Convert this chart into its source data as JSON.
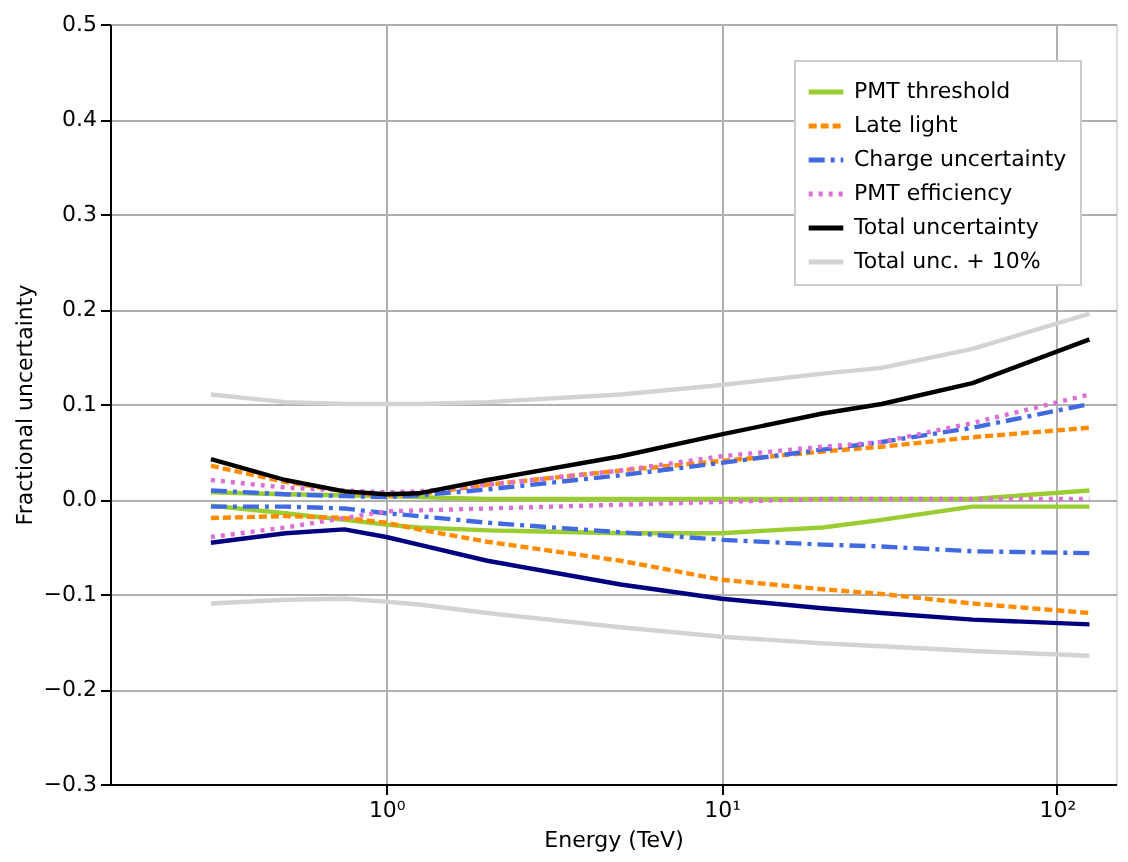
{
  "chart_data": {
    "type": "line",
    "xlabel": "Energy (TeV)",
    "ylabel": "Fractional uncertainty",
    "log": "x",
    "grid": true,
    "legend": "top right",
    "xlim": [
      0.15,
      150
    ],
    "xticks": [
      {
        "value": 1,
        "label": "10⁰"
      },
      {
        "value": 10,
        "label": "10¹"
      },
      {
        "value": 100,
        "label": "10²"
      }
    ],
    "ylim": [
      -0.3,
      0.5
    ],
    "yticks": [
      -0.3,
      -0.2,
      -0.1,
      {
        "value": 0,
        "label": "0.0"
      },
      0.1,
      0.2,
      0.3,
      0.4,
      0.5
    ],
    "x": [
      0.3,
      0.5,
      0.75,
      1,
      1.25,
      2,
      5,
      10,
      20,
      30,
      56,
      125
    ],
    "series": [
      {
        "name": "PMT threshold",
        "color": "#9acd32",
        "line_style": "solid",
        "values": [
          0.007,
          0.005,
          0.004,
          0.003,
          0.002,
          0.0,
          0.0,
          0.0,
          0.0,
          0.0,
          0.0,
          0.009
        ]
      },
      {
        "color": "#9acd32",
        "line_style": "solid",
        "values": [
          -0.007,
          -0.015,
          -0.022,
          -0.027,
          -0.03,
          -0.033,
          -0.036,
          -0.036,
          -0.03,
          -0.022,
          -0.008,
          -0.008
        ]
      },
      {
        "name": "Late light",
        "color": "#ff8c00",
        "line_style": "dashed",
        "values": [
          0.035,
          0.018,
          0.008,
          0.003,
          0.005,
          0.015,
          0.03,
          0.04,
          0.05,
          0.055,
          0.065,
          0.075
        ]
      },
      {
        "color": "#ff8c00",
        "line_style": "dashed",
        "values": [
          -0.02,
          -0.018,
          -0.02,
          -0.025,
          -0.032,
          -0.045,
          -0.065,
          -0.085,
          -0.095,
          -0.1,
          -0.11,
          -0.12
        ]
      },
      {
        "name": "Charge uncertainty",
        "color": "#4169e1",
        "line_style": "dashdot",
        "values": [
          0.009,
          0.005,
          0.003,
          0.002,
          0.004,
          0.01,
          0.025,
          0.038,
          0.052,
          0.06,
          0.075,
          0.1
        ]
      },
      {
        "color": "#4169e1",
        "line_style": "dashdot",
        "values": [
          -0.008,
          -0.008,
          -0.01,
          -0.015,
          -0.018,
          -0.025,
          -0.035,
          -0.043,
          -0.048,
          -0.05,
          -0.055,
          -0.057
        ]
      },
      {
        "name": "PMT efficiency",
        "color": "#da70d6",
        "line_style": "dotted",
        "values": [
          0.02,
          0.012,
          0.009,
          0.007,
          0.008,
          0.015,
          0.03,
          0.045,
          0.055,
          0.06,
          0.08,
          0.11
        ]
      },
      {
        "color": "#da70d6",
        "line_style": "dotted",
        "values": [
          -0.04,
          -0.03,
          -0.02,
          -0.013,
          -0.012,
          -0.01,
          -0.006,
          -0.003,
          0.0,
          0.0,
          0.0,
          0.0
        ]
      },
      {
        "name": "Total uncertainty",
        "color": "#000000",
        "line_style": "solid",
        "values": [
          0.042,
          0.02,
          0.008,
          0.005,
          0.006,
          0.02,
          0.045,
          0.068,
          0.09,
          0.1,
          0.122,
          0.168
        ]
      },
      {
        "color": "#000080",
        "line_style": "solid",
        "values": [
          -0.046,
          -0.036,
          -0.032,
          -0.04,
          -0.048,
          -0.065,
          -0.09,
          -0.105,
          -0.115,
          -0.12,
          -0.127,
          -0.132
        ]
      },
      {
        "name": "Total unc. + 10%",
        "color": "#d3d3d3",
        "line_style": "solid",
        "values": [
          0.11,
          0.102,
          0.1,
          0.1,
          0.1,
          0.102,
          0.11,
          0.12,
          0.132,
          0.138,
          0.158,
          0.195
        ]
      },
      {
        "color": "#d3d3d3",
        "line_style": "solid",
        "values": [
          -0.11,
          -0.106,
          -0.105,
          -0.108,
          -0.111,
          -0.12,
          -0.135,
          -0.145,
          -0.152,
          -0.155,
          -0.16,
          -0.165
        ]
      }
    ]
  }
}
